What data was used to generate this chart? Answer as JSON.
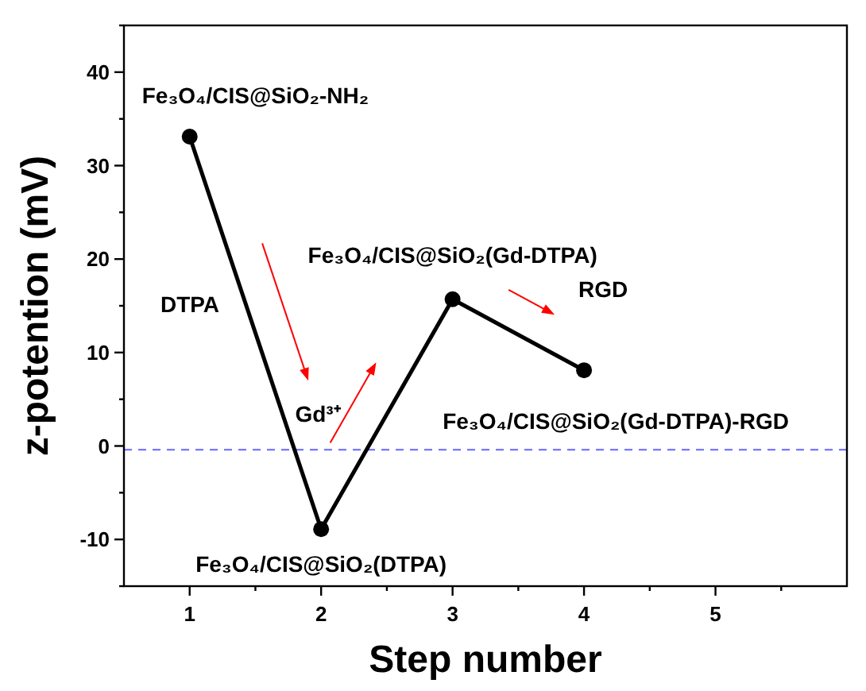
{
  "chart_data": {
    "type": "line",
    "xlabel": "Step number",
    "ylabel": "z-potention (mV)",
    "x": [
      1,
      2,
      3,
      4
    ],
    "series": [
      {
        "color": "#000000",
        "values": [
          33.1,
          -8.9,
          15.7,
          8.1
        ]
      }
    ],
    "marker": "circle",
    "line_style": "solid",
    "grid": false,
    "xlim": [
      0.5,
      6
    ],
    "xticks": [
      1,
      {
        "value": 1.5,
        "label": null
      },
      2,
      {
        "value": 2.5,
        "label": null
      },
      3,
      {
        "value": 3.5,
        "label": null
      },
      4,
      {
        "value": 4.5,
        "label": null
      },
      5,
      {
        "value": 5.5,
        "label": null
      }
    ],
    "ylim": [
      -15,
      45
    ],
    "yticks": [
      {
        "value": -15,
        "label": null
      },
      -10,
      {
        "value": -5,
        "label": null
      },
      0,
      {
        "value": 5,
        "label": null
      },
      10,
      {
        "value": 15,
        "label": null
      },
      20,
      {
        "value": 25,
        "label": null
      },
      30,
      {
        "value": 35,
        "label": null
      },
      40,
      {
        "value": 45,
        "label": null
      }
    ],
    "ref_lines": [
      {
        "axis": "y",
        "value": -0.4,
        "color": "#6666ff",
        "line_style": "dashed"
      }
    ],
    "annotations": [
      {
        "text": "Fe₃O₄/CIS@SiO₂-NH₂",
        "x": 1,
        "y": 33.1
      },
      {
        "text": "Fe₃O₄/CIS@SiO₂(DTPA)",
        "x": 2,
        "y": -8.9
      },
      {
        "text": "Fe₃O₄/CIS@SiO₂(Gd-DTPA)",
        "x": 3,
        "y": 15.7
      },
      {
        "text": "Fe₃O₄/CIS@SiO₂(Gd-DTPA)-RGD",
        "x": 4,
        "y": 8.1
      },
      "DTPA",
      "Gd³⁺",
      "RGD"
    ]
  }
}
